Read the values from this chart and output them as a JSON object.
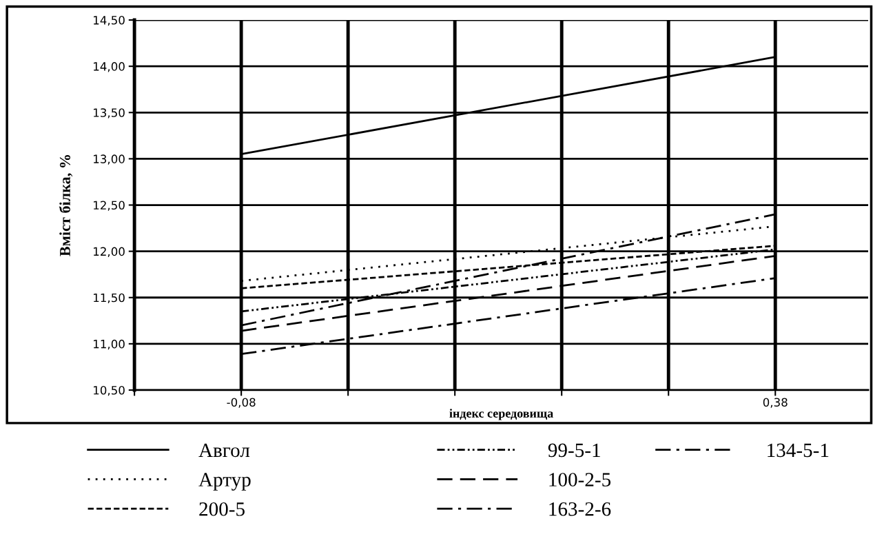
{
  "chart_data": {
    "type": "line",
    "xlabel": "індекс середовища",
    "ylabel": "Вміст білка, %",
    "x": [
      -0.08,
      0.38
    ],
    "series": [
      {
        "name": "Авгол",
        "color": "#000000",
        "line_style": "solid",
        "values": [
          13.05,
          14.1
        ]
      },
      {
        "name": "Артур",
        "color": "#000000",
        "line_style": "dotted",
        "values": [
          11.68,
          12.27
        ]
      },
      {
        "name": "200-5",
        "color": "#000000",
        "line_style": "dashed",
        "values": [
          11.6,
          12.06
        ]
      },
      {
        "name": "99-5-1",
        "color": "#000000",
        "line_style": "dashdotdot",
        "values": [
          11.35,
          12.02
        ]
      },
      {
        "name": "100-2-5",
        "color": "#000000",
        "line_style": "longdash",
        "values": [
          11.14,
          11.95
        ]
      },
      {
        "name": "163-2-6",
        "color": "#000000",
        "line_style": "dashdot",
        "values": [
          10.89,
          11.71
        ]
      },
      {
        "name": "134-5-1",
        "color": "#000000",
        "line_style": "dashdot",
        "values": [
          11.2,
          12.4
        ]
      }
    ],
    "xlim": [
      -0.172,
      0.46
    ],
    "xticks": [
      {
        "value": -0.172,
        "label": null
      },
      {
        "value": -0.08,
        "label": "-0,08"
      },
      {
        "value": 0.012,
        "label": null
      },
      {
        "value": 0.104,
        "label": null
      },
      {
        "value": 0.196,
        "label": null
      },
      {
        "value": 0.288,
        "label": null
      },
      {
        "value": 0.38,
        "label": "0,38"
      }
    ],
    "ylim": [
      10.5,
      14.5
    ],
    "yticks": [
      {
        "value": 10.5,
        "label": "10,50"
      },
      {
        "value": 11.0,
        "label": "11,00"
      },
      {
        "value": 11.5,
        "label": "11,50"
      },
      {
        "value": 12.0,
        "label": "12,00"
      },
      {
        "value": 12.5,
        "label": "12,50"
      },
      {
        "value": 13.0,
        "label": "13,00"
      },
      {
        "value": 13.5,
        "label": "13,50"
      },
      {
        "value": 14.0,
        "label": "14,00"
      },
      {
        "value": 14.5,
        "label": "14,50"
      }
    ],
    "grid": true,
    "legend": "bottom"
  }
}
